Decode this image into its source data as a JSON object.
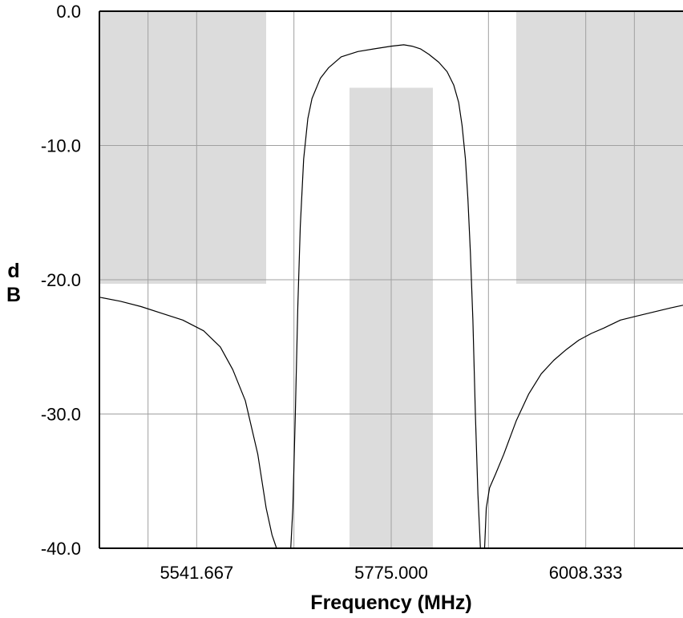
{
  "chart_data": {
    "type": "line",
    "title": "",
    "xlabel": "Frequency (MHz)",
    "ylabel": "dB",
    "ylabel_lines": [
      "d",
      "B"
    ],
    "xlim": [
      5425.0,
      6125.0
    ],
    "ylim": [
      -40.0,
      0.0
    ],
    "x_ticks": [
      5541.667,
      5775.0,
      6008.333
    ],
    "x_tick_labels": [
      "5541.667",
      "5775.000",
      "6008.333"
    ],
    "y_ticks": [
      0,
      -10,
      -20,
      -30,
      -40
    ],
    "y_tick_labels": [
      "0.0",
      "-10.0",
      "-20.0",
      "-30.0",
      "-40.0"
    ],
    "grid": true,
    "x_gridlines": [
      5483.333,
      5541.667,
      5658.333,
      5775.0,
      5891.667,
      6008.333,
      6066.667
    ],
    "mask_regions": [
      {
        "x0": 5425.0,
        "x1": 5625.0,
        "y0": -20.3,
        "y1": 0.0
      },
      {
        "x0": 5725.0,
        "x1": 5825.0,
        "y0": -40.0,
        "y1": -5.7
      },
      {
        "x0": 5925.0,
        "x1": 6125.0,
        "y0": -20.3,
        "y1": 0.0
      }
    ],
    "series": [
      {
        "x": [
          5425,
          5450,
          5475,
          5500,
          5525,
          5550,
          5570,
          5585,
          5600,
          5615,
          5625,
          5632,
          5637.5
        ],
        "y": [
          -21.3,
          -21.6,
          -22.0,
          -22.5,
          -23.0,
          -23.8,
          -25.0,
          -26.7,
          -29.0,
          -33.0,
          -37.0,
          -39.0,
          -40.0
        ]
      },
      {
        "x": [
          5654.5,
          5657,
          5660,
          5663,
          5666,
          5670,
          5675,
          5680,
          5690,
          5700,
          5715,
          5735,
          5755,
          5775,
          5790,
          5800,
          5810,
          5820,
          5832,
          5842,
          5850,
          5856,
          5860,
          5864,
          5867,
          5870,
          5873,
          5876,
          5879,
          5882
        ],
        "y": [
          -40.0,
          -37.0,
          -30.0,
          -22.0,
          -16.0,
          -11.0,
          -8.0,
          -6.5,
          -5.0,
          -4.2,
          -3.4,
          -3.0,
          -2.8,
          -2.6,
          -2.5,
          -2.6,
          -2.8,
          -3.2,
          -3.8,
          -4.5,
          -5.5,
          -6.8,
          -8.5,
          -11.0,
          -14.0,
          -18.0,
          -23.0,
          -30.0,
          -36.0,
          -40.0
        ]
      },
      {
        "x": [
          5887,
          5889,
          5893,
          5900,
          5910,
          5925,
          5940,
          5955,
          5970,
          5985,
          6000,
          6015,
          6030,
          6050,
          6070,
          6090,
          6110,
          6125
        ],
        "y": [
          -40.0,
          -37.0,
          -35.5,
          -34.5,
          -33.0,
          -30.5,
          -28.5,
          -27.0,
          -26.0,
          -25.2,
          -24.5,
          -24.0,
          -23.6,
          -23.0,
          -22.7,
          -22.4,
          -22.1,
          -21.9
        ]
      }
    ]
  }
}
